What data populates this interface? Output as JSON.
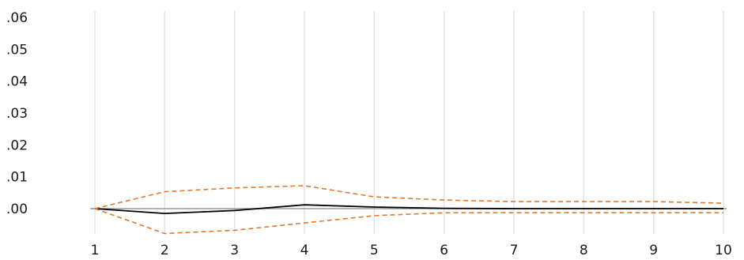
{
  "chart_data": {
    "type": "line",
    "title": "",
    "xlabel": "",
    "ylabel": "",
    "x": [
      1,
      2,
      3,
      4,
      5,
      6,
      7,
      8,
      9,
      10
    ],
    "x_tick_labels": [
      "1",
      "2",
      "3",
      "4",
      "5",
      "6",
      "7",
      "8",
      "9",
      "10"
    ],
    "y_tick_labels": [
      ".06",
      ".05",
      ".04",
      ".03",
      ".02",
      ".01",
      ".00"
    ],
    "y_tick_values": [
      0.06,
      0.05,
      0.04,
      0.03,
      0.02,
      0.01,
      0.0
    ],
    "ylim": [
      -0.008,
      0.06
    ],
    "xlim": [
      1,
      10
    ],
    "grid": "vertical",
    "legend": "none",
    "series": [
      {
        "role": "response",
        "style": "solid",
        "color": "#000000",
        "values": [
          0.0,
          -0.0015,
          -0.0006,
          0.0012,
          0.0005,
          0.0001,
          0.0,
          0.0,
          0.0,
          0.0
        ]
      },
      {
        "role": "upper-band",
        "style": "dashed",
        "color": "#e07a2e",
        "values": [
          0.0,
          0.0053,
          0.0065,
          0.0072,
          0.0037,
          0.0027,
          0.0022,
          0.0022,
          0.0022,
          0.0017
        ]
      },
      {
        "role": "lower-band",
        "style": "dashed",
        "color": "#e07a2e",
        "values": [
          0.0,
          -0.0078,
          -0.0068,
          -0.0045,
          -0.0022,
          -0.0013,
          -0.0013,
          -0.0013,
          -0.0013,
          -0.0013
        ]
      }
    ],
    "colors": {
      "grid": "#e3e3e3",
      "axis": "#9a9a9a",
      "response": "#000000",
      "bands": "#e07a2e"
    }
  }
}
